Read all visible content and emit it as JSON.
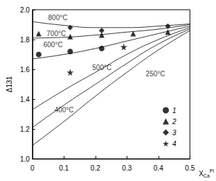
{
  "chart_data": {
    "type": "scatter",
    "xlabel": {
      "base": "X",
      "sub": "Ca",
      "sup": "Pl"
    },
    "ylabel": "Δ131",
    "xlim": [
      0,
      0.5
    ],
    "xticks": [
      0,
      0.1,
      0.2,
      0.3,
      0.4,
      0.5
    ],
    "ylim": [
      1.0,
      2.0
    ],
    "yticks": [
      {
        "value": 1.0,
        "label": "1.0"
      },
      {
        "value": 1.2,
        "label": "1.2"
      },
      {
        "value": 1.4,
        "label": "1.4"
      },
      {
        "value": 1.6,
        "label": "1.6"
      },
      {
        "value": 1.8,
        "label": "1.8"
      },
      {
        "value": 2.0,
        "label": "2.0"
      }
    ],
    "grid": false,
    "legend": "lower right",
    "color": "#000000",
    "series": [
      {
        "name": "1",
        "type": "scatter",
        "marker": "circle",
        "color": "#000000",
        "x": [
          0.02,
          0.12,
          0.22
        ],
        "values": [
          1.7,
          1.72,
          1.74
        ]
      },
      {
        "name": "2",
        "type": "scatter",
        "marker": "triangle",
        "color": "#000000",
        "x": [
          0.02,
          0.12,
          0.22,
          0.32,
          0.43
        ],
        "values": [
          1.84,
          1.82,
          1.83,
          1.84,
          1.85
        ]
      },
      {
        "name": "3",
        "type": "scatter",
        "marker": "diamond",
        "color": "#000000",
        "x": [
          0.12,
          0.22,
          0.43
        ],
        "values": [
          1.88,
          1.86,
          1.89
        ]
      },
      {
        "name": "4",
        "type": "scatter",
        "marker": "star",
        "color": "#000000",
        "x": [
          0.12,
          0.29
        ],
        "values": [
          1.58,
          1.75
        ]
      },
      {
        "type": "line",
        "line_style": "solid",
        "color": "#000000",
        "x": [
          0,
          0.1,
          0.2,
          0.3,
          0.4,
          0.5
        ],
        "values": [
          1.92,
          1.895,
          1.88,
          1.88,
          1.89,
          1.905
        ]
      },
      {
        "type": "line",
        "line_style": "solid",
        "color": "#000000",
        "x": [
          0,
          0.1,
          0.2,
          0.3,
          0.4,
          0.5
        ],
        "values": [
          1.81,
          1.815,
          1.83,
          1.85,
          1.87,
          1.9
        ]
      },
      {
        "type": "line",
        "line_style": "solid",
        "color": "#000000",
        "x": [
          0,
          0.1,
          0.2,
          0.3,
          0.4,
          0.5
        ],
        "values": [
          1.67,
          1.7,
          1.74,
          1.79,
          1.84,
          1.89
        ]
      },
      {
        "type": "line",
        "line_style": "solid",
        "color": "#000000",
        "x": [
          0,
          0.1,
          0.2,
          0.3,
          0.4,
          0.5
        ],
        "values": [
          1.33,
          1.46,
          1.58,
          1.7,
          1.8,
          1.88
        ]
      },
      {
        "type": "line",
        "line_style": "solid",
        "color": "#000000",
        "x": [
          0,
          0.1,
          0.2,
          0.3,
          0.4,
          0.5
        ],
        "values": [
          1.21,
          1.36,
          1.5,
          1.64,
          1.77,
          1.87
        ]
      },
      {
        "type": "line",
        "line_style": "solid",
        "color": "#000000",
        "x": [
          0,
          0.1,
          0.2,
          0.3,
          0.4,
          0.5
        ],
        "values": [
          1.09,
          1.25,
          1.42,
          1.58,
          1.73,
          1.86
        ]
      }
    ],
    "annotations": [
      {
        "text": "800°C",
        "x": 0.05,
        "y": 1.945
      },
      {
        "text": "700°C",
        "x": 0.045,
        "y": 1.84
      },
      {
        "text": "600°C",
        "x": 0.035,
        "y": 1.765
      },
      {
        "text": "500°C",
        "x": 0.19,
        "y": 1.61
      },
      {
        "text": "400°C",
        "x": 0.07,
        "y": 1.33
      },
      {
        "text": "250°C",
        "x": 0.36,
        "y": 1.57
      }
    ]
  }
}
